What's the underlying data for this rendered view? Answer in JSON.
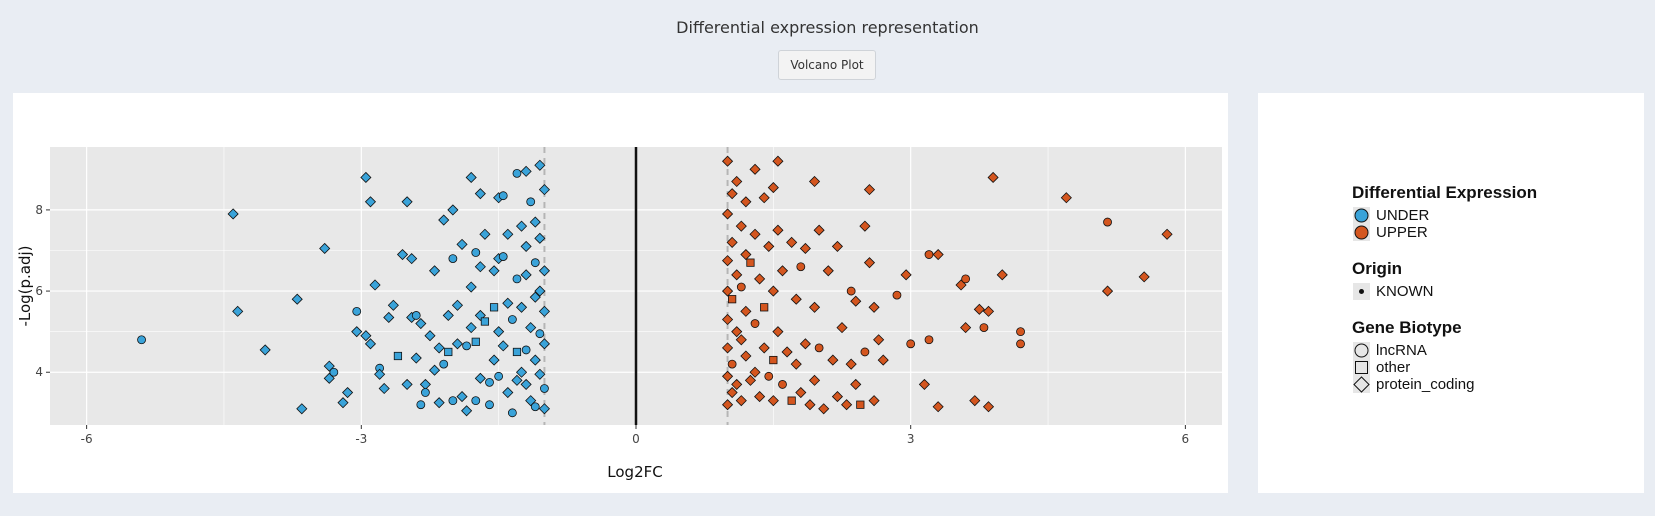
{
  "page": {
    "title": "Differential expression representation"
  },
  "tabs": [
    {
      "label": "Volcano Plot"
    }
  ],
  "colors": {
    "UNDER": "#3aa3d9",
    "UPPER": "#d4561f",
    "panel": "#e8e8e8",
    "grid": "#ffffff"
  },
  "chart_data": {
    "type": "scatter",
    "xlabel": "Log2FC",
    "ylabel": "-Log(p.adj)",
    "xlim": [
      -6.4,
      6.4
    ],
    "ylim": [
      2.7,
      9.55
    ],
    "xticks": [
      -6,
      -3,
      0,
      3,
      6
    ],
    "xtick_labels": [
      "-6",
      "-3",
      "0",
      "3",
      "6"
    ],
    "yticks": [
      4,
      6,
      8
    ],
    "ytick_labels": [
      "4",
      "6",
      "8"
    ],
    "thresholds": {
      "zero": 0,
      "dashed": [
        -1,
        1
      ]
    },
    "grid": true,
    "legend_position": "right",
    "legend": {
      "expression": {
        "title": "Differential Expression",
        "items": [
          "UNDER",
          "UPPER"
        ]
      },
      "origin": {
        "title": "Origin",
        "items": [
          "KNOWN"
        ]
      },
      "biotype": {
        "title": "Gene Biotype",
        "items": [
          "lncRNA",
          "other",
          "protein_coding"
        ]
      }
    },
    "series": [
      {
        "name": "UNDER",
        "points": [
          [
            -5.4,
            4.8,
            "c"
          ],
          [
            -4.4,
            7.9,
            "d"
          ],
          [
            -4.35,
            5.5,
            "d"
          ],
          [
            -4.05,
            4.55,
            "d"
          ],
          [
            -3.7,
            5.8,
            "d"
          ],
          [
            -3.65,
            3.1,
            "d"
          ],
          [
            -3.4,
            7.05,
            "d"
          ],
          [
            -3.35,
            4.15,
            "d"
          ],
          [
            -3.35,
            3.85,
            "d"
          ],
          [
            -3.3,
            4.0,
            "c"
          ],
          [
            -3.2,
            3.25,
            "d"
          ],
          [
            -3.15,
            3.5,
            "d"
          ],
          [
            -3.05,
            5.5,
            "c"
          ],
          [
            -3.05,
            5.0,
            "d"
          ],
          [
            -2.95,
            8.8,
            "d"
          ],
          [
            -2.95,
            4.9,
            "d"
          ],
          [
            -2.9,
            4.7,
            "d"
          ],
          [
            -2.9,
            8.2,
            "d"
          ],
          [
            -2.85,
            6.15,
            "d"
          ],
          [
            -2.8,
            4.1,
            "c"
          ],
          [
            -2.8,
            3.95,
            "d"
          ],
          [
            -2.75,
            3.6,
            "d"
          ],
          [
            -2.7,
            5.35,
            "d"
          ],
          [
            -2.65,
            5.65,
            "d"
          ],
          [
            -2.6,
            4.4,
            "s"
          ],
          [
            -2.55,
            6.9,
            "d"
          ],
          [
            -2.5,
            8.2,
            "d"
          ],
          [
            -2.5,
            3.7,
            "d"
          ],
          [
            -2.45,
            5.35,
            "d"
          ],
          [
            -2.45,
            6.8,
            "d"
          ],
          [
            -2.4,
            5.4,
            "c"
          ],
          [
            -2.4,
            4.35,
            "d"
          ],
          [
            -2.35,
            5.2,
            "d"
          ],
          [
            -2.35,
            3.2,
            "c"
          ],
          [
            -2.3,
            3.7,
            "d"
          ],
          [
            -2.3,
            3.5,
            "c"
          ],
          [
            -2.25,
            4.9,
            "d"
          ],
          [
            -2.2,
            6.5,
            "d"
          ],
          [
            -2.2,
            4.05,
            "d"
          ],
          [
            -2.15,
            4.6,
            "d"
          ],
          [
            -2.15,
            3.25,
            "d"
          ],
          [
            -2.1,
            7.75,
            "d"
          ],
          [
            -2.1,
            4.2,
            "c"
          ],
          [
            -2.05,
            4.5,
            "s"
          ],
          [
            -2.05,
            5.4,
            "d"
          ],
          [
            -2.0,
            8.0,
            "d"
          ],
          [
            -2.0,
            6.8,
            "c"
          ],
          [
            -2.0,
            3.3,
            "c"
          ],
          [
            -1.95,
            5.65,
            "d"
          ],
          [
            -1.95,
            4.7,
            "d"
          ],
          [
            -1.9,
            7.15,
            "d"
          ],
          [
            -1.9,
            3.4,
            "d"
          ],
          [
            -1.85,
            4.65,
            "c"
          ],
          [
            -1.85,
            3.05,
            "d"
          ],
          [
            -1.8,
            6.1,
            "d"
          ],
          [
            -1.8,
            5.1,
            "d"
          ],
          [
            -1.8,
            8.8,
            "d"
          ],
          [
            -1.75,
            4.75,
            "s"
          ],
          [
            -1.75,
            6.95,
            "c"
          ],
          [
            -1.75,
            3.3,
            "c"
          ],
          [
            -1.7,
            8.4,
            "d"
          ],
          [
            -1.7,
            6.6,
            "d"
          ],
          [
            -1.7,
            5.4,
            "d"
          ],
          [
            -1.7,
            3.85,
            "d"
          ],
          [
            -1.65,
            7.4,
            "d"
          ],
          [
            -1.65,
            5.25,
            "s"
          ],
          [
            -1.6,
            3.75,
            "c"
          ],
          [
            -1.6,
            3.2,
            "c"
          ],
          [
            -1.55,
            6.5,
            "d"
          ],
          [
            -1.55,
            5.6,
            "s"
          ],
          [
            -1.55,
            4.3,
            "d"
          ],
          [
            -1.5,
            8.3,
            "d"
          ],
          [
            -1.5,
            6.8,
            "d"
          ],
          [
            -1.5,
            5.0,
            "d"
          ],
          [
            -1.5,
            3.9,
            "c"
          ],
          [
            -1.45,
            8.35,
            "c"
          ],
          [
            -1.45,
            6.85,
            "c"
          ],
          [
            -1.45,
            4.65,
            "d"
          ],
          [
            -1.4,
            7.4,
            "d"
          ],
          [
            -1.4,
            5.7,
            "d"
          ],
          [
            -1.4,
            3.5,
            "d"
          ],
          [
            -1.35,
            3.0,
            "c"
          ],
          [
            -1.35,
            5.3,
            "c"
          ],
          [
            -1.3,
            8.9,
            "c"
          ],
          [
            -1.3,
            6.3,
            "c"
          ],
          [
            -1.3,
            4.5,
            "s"
          ],
          [
            -1.3,
            3.8,
            "d"
          ],
          [
            -1.25,
            7.6,
            "d"
          ],
          [
            -1.25,
            5.6,
            "d"
          ],
          [
            -1.25,
            4.0,
            "d"
          ],
          [
            -1.2,
            8.95,
            "d"
          ],
          [
            -1.2,
            7.1,
            "d"
          ],
          [
            -1.2,
            6.4,
            "d"
          ],
          [
            -1.2,
            4.55,
            "c"
          ],
          [
            -1.2,
            3.7,
            "d"
          ],
          [
            -1.15,
            8.2,
            "c"
          ],
          [
            -1.15,
            5.1,
            "d"
          ],
          [
            -1.15,
            3.3,
            "d"
          ],
          [
            -1.1,
            7.7,
            "d"
          ],
          [
            -1.1,
            6.7,
            "c"
          ],
          [
            -1.1,
            5.85,
            "d"
          ],
          [
            -1.1,
            4.3,
            "d"
          ],
          [
            -1.1,
            3.15,
            "c"
          ],
          [
            -1.05,
            9.1,
            "d"
          ],
          [
            -1.05,
            7.3,
            "d"
          ],
          [
            -1.05,
            6.0,
            "d"
          ],
          [
            -1.05,
            4.95,
            "c"
          ],
          [
            -1.05,
            3.95,
            "d"
          ],
          [
            -1.0,
            8.5,
            "d"
          ],
          [
            -1.0,
            6.5,
            "d"
          ],
          [
            -1.0,
            5.5,
            "d"
          ],
          [
            -1.0,
            4.7,
            "d"
          ],
          [
            -1.0,
            3.6,
            "c"
          ],
          [
            -1.0,
            3.1,
            "d"
          ]
        ]
      },
      {
        "name": "UPPER",
        "points": [
          [
            1.0,
            9.2,
            "d"
          ],
          [
            1.0,
            7.9,
            "d"
          ],
          [
            1.0,
            6.75,
            "d"
          ],
          [
            1.0,
            6.0,
            "d"
          ],
          [
            1.0,
            5.3,
            "d"
          ],
          [
            1.0,
            4.6,
            "d"
          ],
          [
            1.0,
            3.9,
            "d"
          ],
          [
            1.0,
            3.2,
            "d"
          ],
          [
            1.05,
            8.4,
            "d"
          ],
          [
            1.05,
            7.2,
            "d"
          ],
          [
            1.05,
            5.8,
            "s"
          ],
          [
            1.05,
            4.2,
            "c"
          ],
          [
            1.05,
            3.5,
            "d"
          ],
          [
            1.1,
            8.7,
            "d"
          ],
          [
            1.1,
            6.4,
            "d"
          ],
          [
            1.1,
            5.0,
            "d"
          ],
          [
            1.1,
            3.7,
            "d"
          ],
          [
            1.15,
            7.6,
            "d"
          ],
          [
            1.15,
            6.1,
            "c"
          ],
          [
            1.15,
            4.8,
            "d"
          ],
          [
            1.15,
            3.3,
            "d"
          ],
          [
            1.2,
            8.2,
            "d"
          ],
          [
            1.2,
            6.9,
            "d"
          ],
          [
            1.2,
            5.5,
            "d"
          ],
          [
            1.2,
            4.4,
            "d"
          ],
          [
            1.25,
            6.7,
            "s"
          ],
          [
            1.25,
            3.8,
            "d"
          ],
          [
            1.3,
            9.0,
            "d"
          ],
          [
            1.3,
            7.4,
            "d"
          ],
          [
            1.3,
            5.2,
            "c"
          ],
          [
            1.3,
            4.0,
            "d"
          ],
          [
            1.35,
            6.3,
            "d"
          ],
          [
            1.35,
            3.4,
            "d"
          ],
          [
            1.4,
            8.3,
            "d"
          ],
          [
            1.4,
            5.6,
            "s"
          ],
          [
            1.4,
            4.6,
            "d"
          ],
          [
            1.45,
            7.1,
            "d"
          ],
          [
            1.45,
            3.9,
            "c"
          ],
          [
            1.5,
            8.55,
            "d"
          ],
          [
            1.5,
            6.0,
            "d"
          ],
          [
            1.5,
            4.3,
            "s"
          ],
          [
            1.5,
            3.3,
            "d"
          ],
          [
            1.55,
            9.2,
            "d"
          ],
          [
            1.55,
            7.5,
            "d"
          ],
          [
            1.55,
            5.0,
            "d"
          ],
          [
            1.6,
            6.5,
            "d"
          ],
          [
            1.6,
            3.7,
            "c"
          ],
          [
            1.65,
            4.5,
            "d"
          ],
          [
            1.7,
            7.2,
            "d"
          ],
          [
            1.7,
            3.3,
            "s"
          ],
          [
            1.75,
            5.8,
            "d"
          ],
          [
            1.75,
            4.2,
            "d"
          ],
          [
            1.8,
            6.6,
            "c"
          ],
          [
            1.8,
            3.5,
            "d"
          ],
          [
            1.85,
            7.05,
            "d"
          ],
          [
            1.85,
            4.7,
            "d"
          ],
          [
            1.9,
            3.2,
            "d"
          ],
          [
            1.95,
            8.7,
            "d"
          ],
          [
            1.95,
            5.6,
            "d"
          ],
          [
            1.95,
            3.8,
            "d"
          ],
          [
            2.0,
            7.5,
            "d"
          ],
          [
            2.0,
            4.6,
            "c"
          ],
          [
            2.05,
            3.1,
            "d"
          ],
          [
            2.1,
            6.5,
            "d"
          ],
          [
            2.15,
            4.3,
            "d"
          ],
          [
            2.2,
            7.1,
            "d"
          ],
          [
            2.2,
            3.4,
            "d"
          ],
          [
            2.25,
            5.1,
            "d"
          ],
          [
            2.3,
            3.2,
            "d"
          ],
          [
            2.35,
            6.0,
            "c"
          ],
          [
            2.35,
            4.2,
            "d"
          ],
          [
            2.4,
            5.75,
            "d"
          ],
          [
            2.4,
            3.7,
            "d"
          ],
          [
            2.45,
            3.2,
            "s"
          ],
          [
            2.5,
            7.6,
            "d"
          ],
          [
            2.5,
            4.5,
            "c"
          ],
          [
            2.55,
            8.5,
            "d"
          ],
          [
            2.55,
            6.7,
            "d"
          ],
          [
            2.6,
            3.3,
            "d"
          ],
          [
            2.6,
            5.6,
            "d"
          ],
          [
            2.65,
            4.8,
            "d"
          ],
          [
            2.7,
            4.3,
            "d"
          ],
          [
            2.85,
            5.9,
            "c"
          ],
          [
            2.95,
            6.4,
            "d"
          ],
          [
            3.0,
            4.7,
            "c"
          ],
          [
            3.15,
            3.7,
            "d"
          ],
          [
            3.2,
            4.8,
            "c"
          ],
          [
            3.2,
            6.9,
            "c"
          ],
          [
            3.3,
            6.9,
            "d"
          ],
          [
            3.3,
            3.15,
            "d"
          ],
          [
            3.55,
            6.15,
            "d"
          ],
          [
            3.6,
            5.1,
            "d"
          ],
          [
            3.6,
            6.3,
            "c"
          ],
          [
            3.7,
            3.3,
            "d"
          ],
          [
            3.75,
            5.55,
            "d"
          ],
          [
            3.8,
            5.1,
            "c"
          ],
          [
            3.85,
            5.5,
            "d"
          ],
          [
            3.85,
            3.15,
            "d"
          ],
          [
            3.9,
            8.8,
            "d"
          ],
          [
            4.0,
            6.4,
            "d"
          ],
          [
            4.2,
            5.0,
            "c"
          ],
          [
            4.2,
            4.7,
            "c"
          ],
          [
            4.7,
            8.3,
            "d"
          ],
          [
            5.15,
            7.7,
            "c"
          ],
          [
            5.15,
            6.0,
            "d"
          ],
          [
            5.55,
            6.35,
            "d"
          ],
          [
            5.8,
            7.4,
            "d"
          ]
        ]
      }
    ]
  }
}
